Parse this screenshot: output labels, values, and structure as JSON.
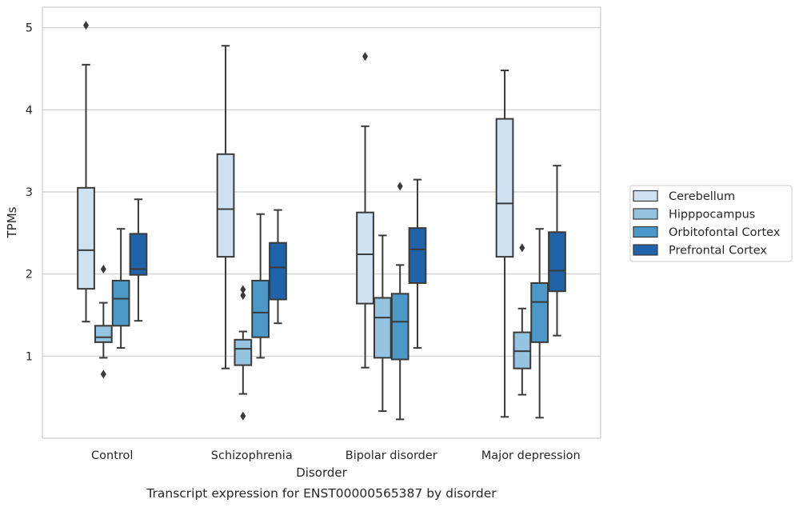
{
  "chart_data": {
    "type": "box",
    "caption": "Transcript expression for ENST00000565387 by disorder",
    "xlabel": "Disorder",
    "ylabel": "TPMs",
    "ylim": [
      0,
      5.25
    ],
    "yticks": [
      1,
      2,
      3,
      4,
      5
    ],
    "grid": "horizontal",
    "legend_position": "right",
    "categories": [
      "Control",
      "Schizophrenia",
      "Bipolar disorder",
      "Major depression"
    ],
    "series": [
      {
        "name": "Cerebellum",
        "color": "#d0e1f2",
        "boxes": [
          {
            "whislo": 1.42,
            "q1": 1.82,
            "med": 2.29,
            "q3": 3.05,
            "whishi": 4.55,
            "fliers": [
              5.03
            ]
          },
          {
            "whislo": 0.85,
            "q1": 2.21,
            "med": 2.79,
            "q3": 3.46,
            "whishi": 4.78,
            "fliers": []
          },
          {
            "whislo": 0.86,
            "q1": 1.64,
            "med": 2.24,
            "q3": 2.75,
            "whishi": 3.8,
            "fliers": [
              4.65
            ]
          },
          {
            "whislo": 0.26,
            "q1": 2.21,
            "med": 2.86,
            "q3": 3.89,
            "whishi": 4.48,
            "fliers": []
          }
        ]
      },
      {
        "name": "Hipppocampus",
        "color": "#94c4df",
        "boxes": [
          {
            "whislo": 0.98,
            "q1": 1.17,
            "med": 1.23,
            "q3": 1.37,
            "whishi": 1.65,
            "fliers": [
              0.78,
              2.06
            ]
          },
          {
            "whislo": 0.54,
            "q1": 0.89,
            "med": 1.09,
            "q3": 1.2,
            "whishi": 1.3,
            "fliers": [
              0.27,
              1.74,
              1.81
            ]
          },
          {
            "whislo": 0.33,
            "q1": 0.98,
            "med": 1.47,
            "q3": 1.71,
            "whishi": 2.47,
            "fliers": []
          },
          {
            "whislo": 0.53,
            "q1": 0.85,
            "med": 1.06,
            "q3": 1.29,
            "whishi": 1.58,
            "fliers": [
              2.32
            ]
          }
        ]
      },
      {
        "name": "Orbitofontal Cortex",
        "color": "#4b98c9",
        "boxes": [
          {
            "whislo": 1.1,
            "q1": 1.37,
            "med": 1.7,
            "q3": 1.92,
            "whishi": 2.55,
            "fliers": []
          },
          {
            "whislo": 0.98,
            "q1": 1.23,
            "med": 1.53,
            "q3": 1.92,
            "whishi": 2.73,
            "fliers": []
          },
          {
            "whislo": 0.23,
            "q1": 0.96,
            "med": 1.42,
            "q3": 1.76,
            "whishi": 2.11,
            "fliers": [
              3.07
            ]
          },
          {
            "whislo": 0.25,
            "q1": 1.17,
            "med": 1.66,
            "q3": 1.89,
            "whishi": 2.55,
            "fliers": []
          }
        ]
      },
      {
        "name": "Prefrontal Cortex",
        "color": "#2163a8",
        "boxes": [
          {
            "whislo": 1.43,
            "q1": 1.99,
            "med": 2.06,
            "q3": 2.49,
            "whishi": 2.91,
            "fliers": []
          },
          {
            "whislo": 1.4,
            "q1": 1.69,
            "med": 2.08,
            "q3": 2.38,
            "whishi": 2.78,
            "fliers": []
          },
          {
            "whislo": 1.1,
            "q1": 1.89,
            "med": 2.3,
            "q3": 2.56,
            "whishi": 3.15,
            "fliers": []
          },
          {
            "whislo": 1.25,
            "q1": 1.79,
            "med": 2.04,
            "q3": 2.51,
            "whishi": 3.32,
            "fliers": []
          }
        ]
      }
    ]
  }
}
